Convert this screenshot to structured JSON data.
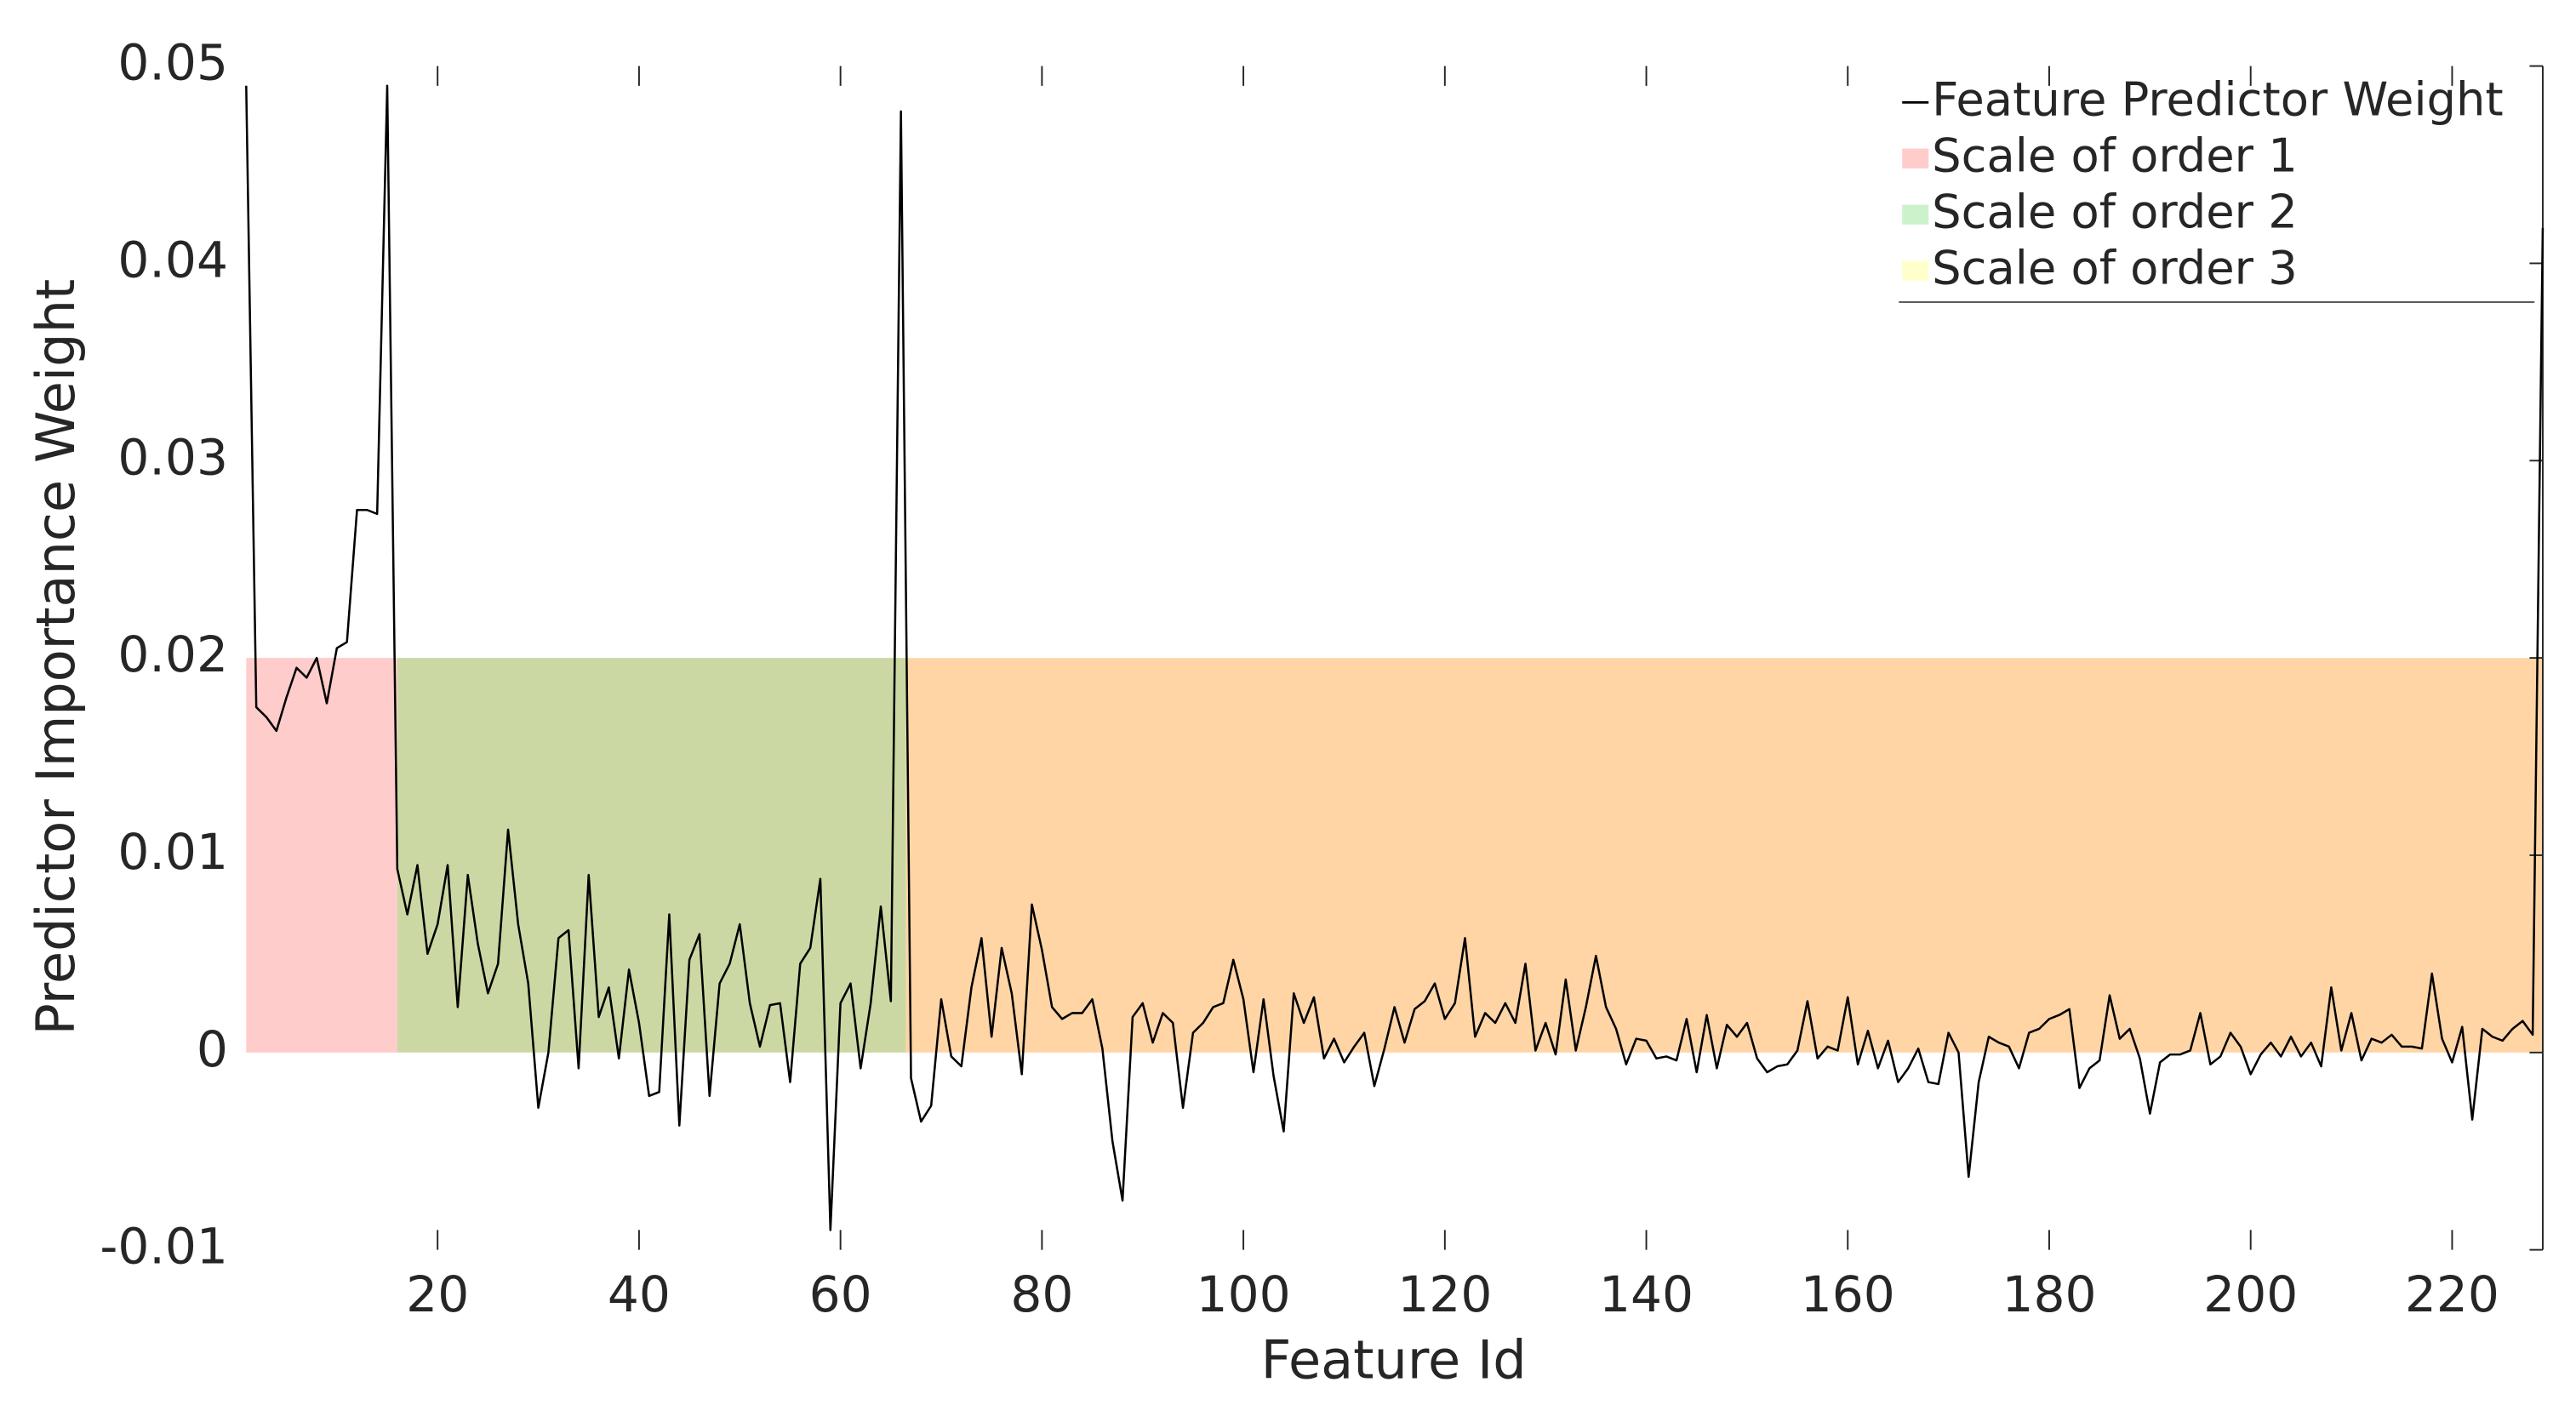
{
  "chart_data": {
    "type": "line",
    "xlabel": "Feature Id",
    "ylabel": "Predictor Importance Weight",
    "xlim": [
      1,
      229
    ],
    "ylim": [
      -0.01,
      0.05
    ],
    "xticks": [
      20,
      40,
      60,
      80,
      100,
      120,
      140,
      160,
      180,
      200,
      220
    ],
    "yticks": [
      -0.01,
      0,
      0.01,
      0.02,
      0.03,
      0.04,
      0.05
    ],
    "grid": false,
    "legend": "upper right",
    "x": [
      1,
      2,
      3,
      4,
      5,
      6,
      7,
      8,
      9,
      10,
      11,
      12,
      13,
      14,
      15,
      16,
      17,
      18,
      19,
      20,
      21,
      22,
      23,
      24,
      25,
      26,
      27,
      28,
      29,
      30,
      31,
      32,
      33,
      34,
      35,
      36,
      37,
      38,
      39,
      40,
      41,
      42,
      43,
      44,
      45,
      46,
      47,
      48,
      49,
      50,
      51,
      52,
      53,
      54,
      55,
      56,
      57,
      58,
      59,
      60,
      61,
      62,
      63,
      64,
      65,
      66,
      67,
      68,
      69,
      70,
      71,
      72,
      73,
      74,
      75,
      76,
      77,
      78,
      79,
      80,
      81,
      82,
      83,
      84,
      85,
      86,
      87,
      88,
      89,
      90,
      91,
      92,
      93,
      94,
      95,
      96,
      97,
      98,
      99,
      100,
      101,
      102,
      103,
      104,
      105,
      106,
      107,
      108,
      109,
      110,
      111,
      112,
      113,
      114,
      115,
      116,
      117,
      118,
      119,
      120,
      121,
      122,
      123,
      124,
      125,
      126,
      127,
      128,
      129,
      130,
      131,
      132,
      133,
      134,
      135,
      136,
      137,
      138,
      139,
      140,
      141,
      142,
      143,
      144,
      145,
      146,
      147,
      148,
      149,
      150,
      151,
      152,
      153,
      154,
      155,
      156,
      157,
      158,
      159,
      160,
      161,
      162,
      163,
      164,
      165,
      166,
      167,
      168,
      169,
      170,
      171,
      172,
      173,
      174,
      175,
      176,
      177,
      178,
      179,
      180,
      181,
      182,
      183,
      184,
      185,
      186,
      187,
      188,
      189,
      190,
      191,
      192,
      193,
      194,
      195,
      196,
      197,
      198,
      199,
      200,
      201,
      202,
      203,
      204,
      205,
      206,
      207,
      208,
      209,
      210,
      211,
      212,
      213,
      214,
      215,
      216,
      217,
      218,
      219,
      220,
      221,
      222,
      223,
      224,
      225,
      226,
      227,
      228,
      229
    ],
    "series": [
      {
        "name": "Feature Predictor Weight",
        "color": "#000000",
        "values": [
          0.049,
          0.0175,
          0.017,
          0.0163,
          0.018,
          0.0195,
          0.019,
          0.02,
          0.0177,
          0.0205,
          0.0208,
          0.0275,
          0.0275,
          0.0273,
          0.049,
          0.0093,
          0.007,
          0.0095,
          0.005,
          0.0065,
          0.0095,
          0.0023,
          0.009,
          0.0055,
          0.003,
          0.0045,
          0.0113,
          0.0065,
          0.0035,
          -0.0028,
          0,
          0.0058,
          0.0062,
          -0.0008,
          0.009,
          0.0018,
          0.0033,
          -0.0003,
          0.0042,
          0.0015,
          -0.0022,
          -0.002,
          0.007,
          -0.0037,
          0.0047,
          0.006,
          -0.0022,
          0.0035,
          0.0045,
          0.0065,
          0.0025,
          0.0003,
          0.0024,
          0.0025,
          -0.0015,
          0.0045,
          0.0053,
          0.0088,
          -0.009,
          0.0025,
          0.0035,
          -0.0008,
          0.0025,
          0.0074,
          0.0026,
          0.0477,
          -0.0013,
          -0.0035,
          -0.0027,
          0.0027,
          -0.0002,
          -0.0007,
          0.0033,
          0.0058,
          0.0008,
          0.0053,
          0.003,
          -0.0011,
          0.0075,
          0.0052,
          0.0023,
          0.0017,
          0.002,
          0.002,
          0.0027,
          0.0002,
          -0.0045,
          -0.0075,
          0.0018,
          0.0025,
          0.0005,
          0.002,
          0.0015,
          -0.0028,
          0.001,
          0.0015,
          0.0023,
          0.0025,
          0.0047,
          0.0027,
          -0.001,
          0.0027,
          -0.0012,
          -0.004,
          0.003,
          0.0015,
          0.0028,
          -0.0003,
          0.0007,
          -0.0005,
          0.0003,
          0.001,
          -0.0017,
          0.0002,
          0.0023,
          0.0005,
          0.0022,
          0.0026,
          0.0035,
          0.0017,
          0.0025,
          0.0058,
          0.0008,
          0.002,
          0.0015,
          0.0025,
          0.0015,
          0.0045,
          0.0001,
          0.0015,
          -0.0001,
          0.0037,
          0.0001,
          0.0023,
          0.0049,
          0.0023,
          0.0012,
          -0.0006,
          0.0007,
          0.0006,
          -0.0003,
          -0.0002,
          -0.0004,
          0.0017,
          -0.001,
          0.0019,
          -0.0008,
          0.0014,
          0.0008,
          0.0015,
          -0.0003,
          -0.001,
          -0.0007,
          -0.0006,
          0.0001,
          0.0026,
          -0.0003,
          0.0003,
          0.0001,
          0.0028,
          -0.0006,
          0.0011,
          -0.0008,
          0.0006,
          -0.0015,
          -0.0008,
          0.0002,
          -0.0015,
          -0.0016,
          0.001,
          0,
          -0.0063,
          -0.0015,
          0.0008,
          0.0005,
          0.0003,
          -0.0008,
          0.001,
          0.0012,
          0.0017,
          0.0019,
          0.0022,
          -0.0018,
          -0.0008,
          -0.0004,
          0.0029,
          0.0007,
          0.0012,
          -0.0003,
          -0.0031,
          -0.0005,
          -0.0001,
          -0.0001,
          0.0001,
          0.002,
          -0.0006,
          -0.0002,
          0.001,
          0.0003,
          -0.0011,
          -0.0001,
          0.0005,
          -0.0002,
          0.0008,
          -0.0002,
          0.0005,
          -0.0007,
          0.0033,
          0.0001,
          0.002,
          -0.0004,
          0.0007,
          0.0005,
          0.0009,
          0.0003,
          0.0003,
          0.0002,
          0.004,
          0.0007,
          -0.0005,
          0.0013,
          -0.0034,
          0.0012,
          0.0008,
          0.0006,
          0.0012,
          0.0016,
          0.0009,
          0.0418
        ]
      }
    ],
    "regions": [
      {
        "name": "Scale of order 1",
        "color": "#ffcccc",
        "legend_color": "#ffcccc",
        "x": [
          1,
          16
        ],
        "y": [
          0,
          0.02
        ]
      },
      {
        "name": "Scale of order 2",
        "color": "#ccd8a4",
        "legend_color": "#ccf2cc",
        "x": [
          16,
          66.5
        ],
        "y": [
          0,
          0.02
        ]
      },
      {
        "name": "Scale of order 3",
        "color": "#ffd5a6",
        "legend_color": "#ffffcc",
        "x": [
          66.5,
          229
        ],
        "y": [
          0,
          0.02
        ]
      }
    ]
  }
}
